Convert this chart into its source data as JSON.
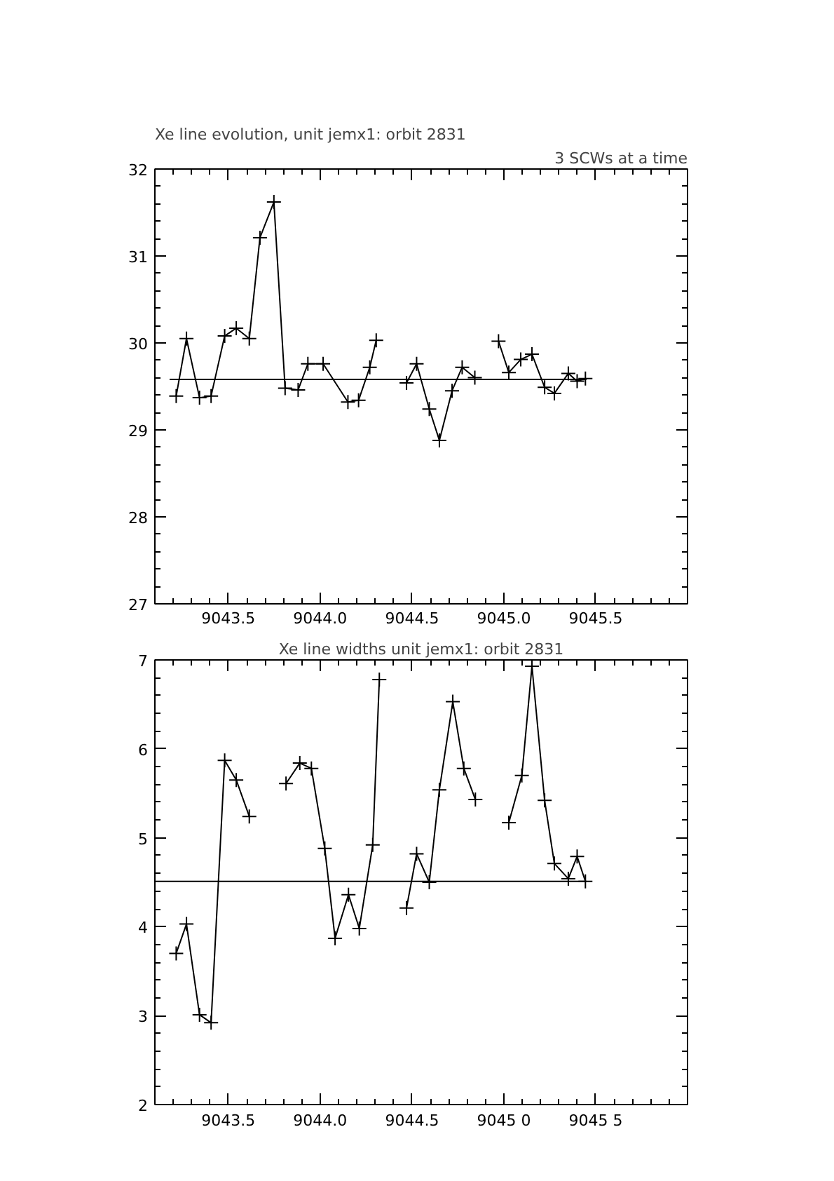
{
  "chart_data": [
    {
      "type": "line",
      "title": "Xe line evolution, unit jemx1: orbit 2831",
      "subtitle": "3 SCWs at a time",
      "xlim": [
        9043.1,
        9046.0
      ],
      "ylim": [
        27,
        32
      ],
      "xticks": [
        {
          "value": 9043.5,
          "label": "9043.5"
        },
        {
          "value": 9044.0,
          "label": "9044.0"
        },
        {
          "value": 9044.5,
          "label": "9044.5"
        },
        {
          "value": 9045.0,
          "label": "9045.0"
        },
        {
          "value": 9045.5,
          "label": "9045.5"
        }
      ],
      "yticks": [
        27,
        28,
        29,
        30,
        31,
        32
      ],
      "grid": false,
      "series": [
        {
          "color": "#000000",
          "marker": "cross",
          "line_style": "solid",
          "x": [
            9043.216,
            9043.272,
            9043.343,
            9043.406,
            9043.48,
            9043.543,
            9043.614,
            9043.672,
            9043.748,
            9043.809,
            9043.88,
            9043.933,
            9044.016,
            9044.151,
            9044.209,
            9044.27,
            9044.305,
            9044.389,
            9044.47,
            9044.525,
            9044.594,
            9044.649,
            9044.718,
            9044.773,
            9044.842,
            9044.9,
            9044.971,
            9045.027,
            9045.092,
            9045.153,
            9045.222,
            9045.275,
            9045.351,
            9045.399,
            9045.444
          ],
          "values": [
            29.39,
            30.05,
            29.37,
            29.39,
            30.08,
            30.17,
            30.05,
            31.21,
            31.62,
            29.48,
            29.46,
            29.76,
            29.76,
            29.32,
            29.34,
            29.72,
            30.03,
            null,
            29.54,
            29.76,
            29.24,
            28.88,
            29.45,
            29.72,
            29.6,
            null,
            30.02,
            29.66,
            29.81,
            29.87,
            29.49,
            29.42,
            29.65,
            29.56,
            29.59
          ]
        },
        {
          "color": "#000000",
          "marker": "none",
          "line_style": "solid",
          "x": [
            9043.18,
            9045.45
          ],
          "values": [
            29.58,
            29.58
          ]
        }
      ]
    },
    {
      "type": "line",
      "title": "Xe line widths unit jemx1: orbit 2831",
      "xlim": [
        9043.1,
        9046.0
      ],
      "ylim": [
        2,
        7
      ],
      "xticks": [
        {
          "value": 9043.5,
          "label": "9043.5"
        },
        {
          "value": 9044.0,
          "label": "9044.0"
        },
        {
          "value": 9044.5,
          "label": "9044.5"
        },
        {
          "value": 9045.0,
          "label": "9045 0"
        },
        {
          "value": 9045.5,
          "label": "9045 5"
        }
      ],
      "yticks": [
        2,
        3,
        4,
        5,
        6,
        7
      ],
      "grid": false,
      "series": [
        {
          "color": "#000000",
          "marker": "cross",
          "line_style": "solid",
          "x": [
            9043.216,
            9043.272,
            9043.343,
            9043.406,
            9043.48,
            9043.543,
            9043.614,
            9043.672,
            9043.748,
            9043.814,
            9043.889,
            9043.952,
            9044.025,
            9044.081,
            9044.154,
            9044.213,
            9044.286,
            9044.322,
            9044.389,
            9044.47,
            9044.525,
            9044.594,
            9044.649,
            9044.722,
            9044.782,
            9044.845,
            9044.9,
            9044.971,
            9045.027,
            9045.098,
            9045.153,
            9045.222,
            9045.275,
            9045.351,
            9045.399,
            9045.444
          ],
          "values": [
            3.7,
            4.03,
            3.01,
            2.92,
            5.87,
            5.65,
            5.24,
            null,
            null,
            5.61,
            5.84,
            5.78,
            4.88,
            3.87,
            4.36,
            3.98,
            4.92,
            6.78,
            null,
            4.21,
            4.82,
            4.5,
            5.54,
            6.53,
            5.78,
            5.43,
            null,
            null,
            5.17,
            5.7,
            6.93,
            5.42,
            4.71,
            4.54,
            4.79,
            4.51
          ]
        },
        {
          "color": "#000000",
          "marker": "none",
          "line_style": "solid",
          "x": [
            9043.1,
            9045.45
          ],
          "values": [
            4.51,
            4.51
          ]
        }
      ]
    }
  ]
}
